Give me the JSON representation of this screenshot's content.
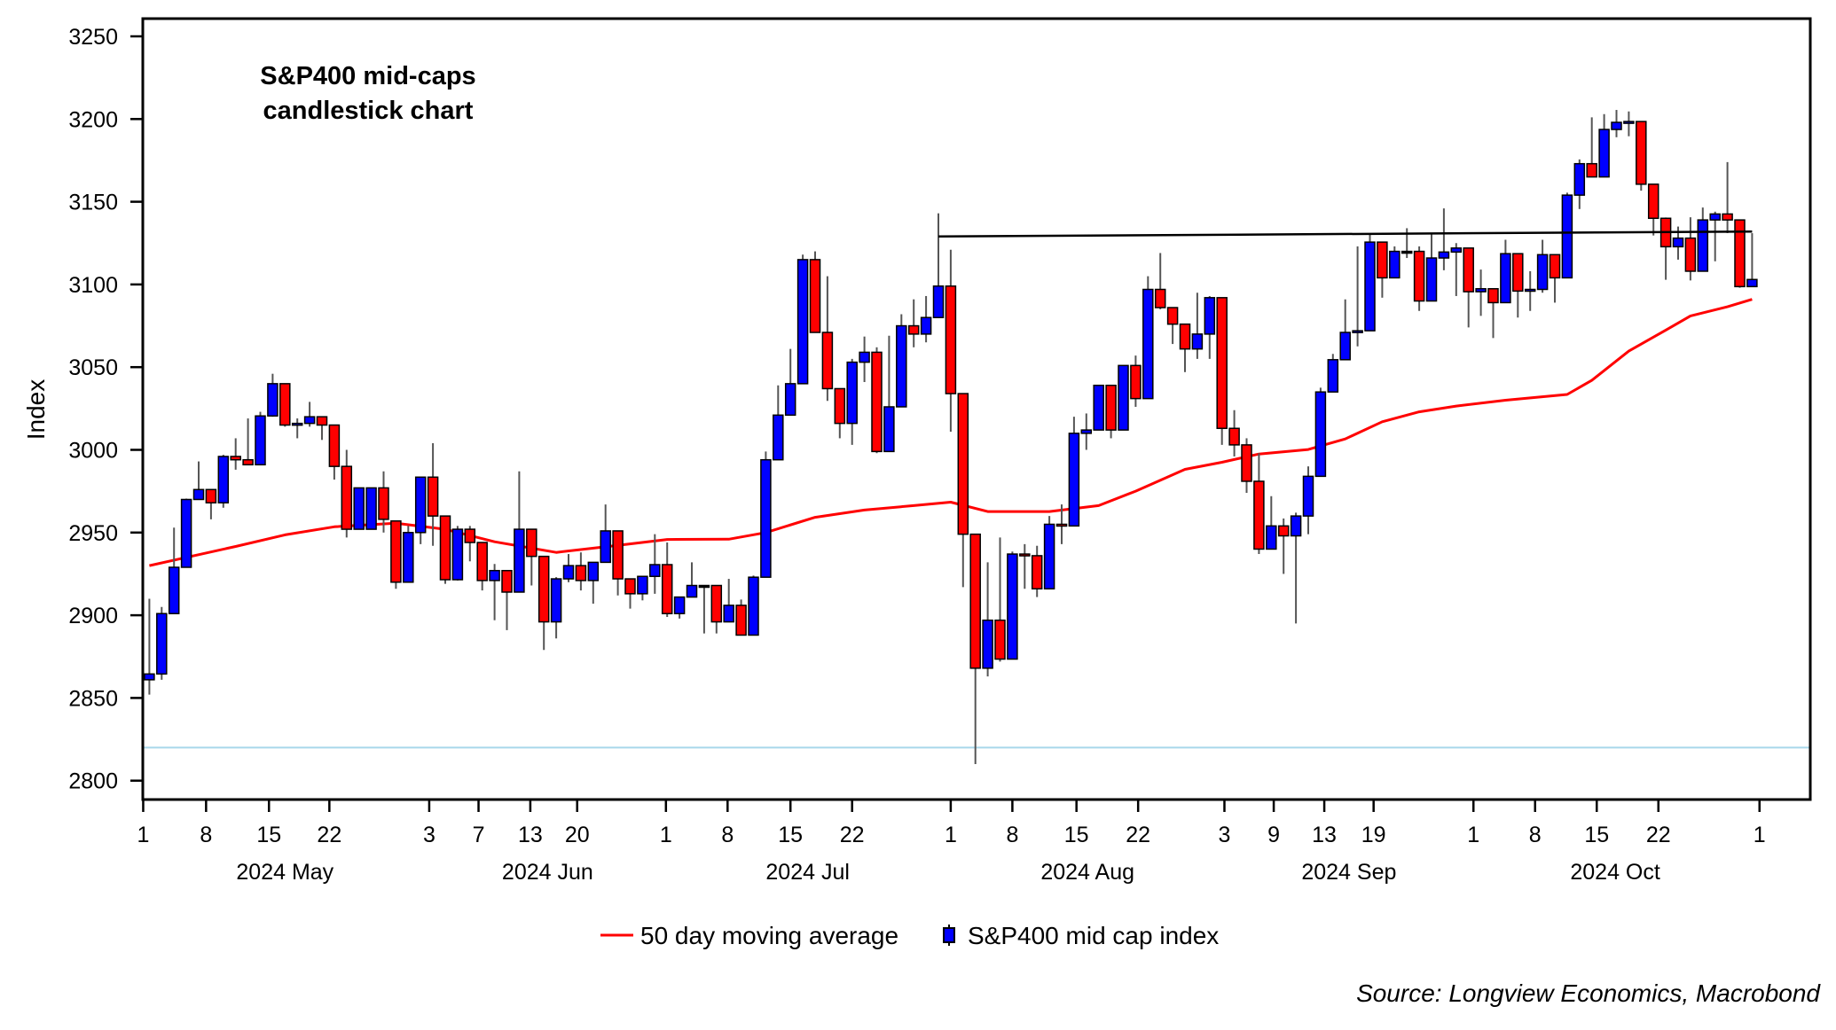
{
  "chart_data": {
    "type": "candlestick",
    "title_lines": [
      "S&P400 mid-caps",
      "candlestick chart"
    ],
    "ylabel": "Index",
    "ylim": [
      2800,
      3250
    ],
    "yticks": [
      2800,
      2850,
      2900,
      2950,
      3000,
      3050,
      3100,
      3150,
      3200,
      3250
    ],
    "xlim_index": [
      0.5,
      133
    ],
    "x_ticks": [
      {
        "label": "1",
        "idx": 0.5
      },
      {
        "label": "8",
        "idx": 5.6
      },
      {
        "label": "15",
        "idx": 10.7
      },
      {
        "label": "22",
        "idx": 15.6
      },
      {
        "label": "3",
        "idx": 23.7
      },
      {
        "label": "7",
        "idx": 27.7
      },
      {
        "label": "13",
        "idx": 31.9
      },
      {
        "label": "20",
        "idx": 35.7
      },
      {
        "label": "1",
        "idx": 42.9
      },
      {
        "label": "8",
        "idx": 47.9
      },
      {
        "label": "15",
        "idx": 53
      },
      {
        "label": "22",
        "idx": 58
      },
      {
        "label": "1",
        "idx": 66
      },
      {
        "label": "8",
        "idx": 71
      },
      {
        "label": "15",
        "idx": 76.2
      },
      {
        "label": "22",
        "idx": 81.2
      },
      {
        "label": "3",
        "idx": 88.2
      },
      {
        "label": "9",
        "idx": 92.2
      },
      {
        "label": "13",
        "idx": 96.3
      },
      {
        "label": "19",
        "idx": 100.3
      },
      {
        "label": "1",
        "idx": 108.4
      },
      {
        "label": "8",
        "idx": 113.4
      },
      {
        "label": "15",
        "idx": 118.4
      },
      {
        "label": "22",
        "idx": 123.4
      },
      {
        "label": "1",
        "idx": 131.6
      }
    ],
    "month_labels": [
      {
        "label": "2024 May",
        "idx": 12
      },
      {
        "label": "2024 Jun",
        "idx": 33.3
      },
      {
        "label": "2024 Jul",
        "idx": 54.4
      },
      {
        "label": "2024 Aug",
        "idx": 77.1
      },
      {
        "label": "2024 Sep",
        "idx": 98.3
      },
      {
        "label": "2024 Oct",
        "idx": 119.9
      }
    ],
    "candles_ohlc": [
      [
        2861,
        2910,
        2852,
        2864.5
      ],
      [
        2864.5,
        2905,
        2861,
        2901
      ],
      [
        2901,
        2953,
        2901,
        2929
      ],
      [
        2929,
        2970.5,
        2929,
        2970
      ],
      [
        2970,
        2993,
        2970,
        2976
      ],
      [
        2976,
        2976,
        2958,
        2968
      ],
      [
        2968,
        2997,
        2965,
        2996
      ],
      [
        2996,
        3007,
        2988,
        2994
      ],
      [
        2994,
        3019,
        2991,
        2991
      ],
      [
        2991,
        3023,
        2991,
        3020.5
      ],
      [
        3020.5,
        3046,
        3020,
        3040
      ],
      [
        3040,
        3040,
        3014,
        3015
      ],
      [
        3015,
        3019,
        3007,
        3016
      ],
      [
        3016,
        3029,
        3014,
        3020
      ],
      [
        3020,
        3020,
        3006,
        3015
      ],
      [
        3015,
        3015,
        2982,
        2990
      ],
      [
        2990,
        3000,
        2947,
        2952
      ],
      [
        2952,
        2977,
        2952,
        2977
      ],
      [
        2952,
        2977,
        2952,
        2977
      ],
      [
        2977,
        2987,
        2950,
        2958
      ],
      [
        2957,
        2957,
        2916,
        2920
      ],
      [
        2920,
        2954,
        2920,
        2950
      ],
      [
        2950,
        2983.5,
        2943,
        2983.5
      ],
      [
        2983.5,
        3004,
        2942,
        2960
      ],
      [
        2960,
        2960,
        2919,
        2921.5
      ],
      [
        2921.5,
        2954,
        2921,
        2952
      ],
      [
        2952,
        2954,
        2932.6,
        2944
      ],
      [
        2944,
        2944,
        2915,
        2921
      ],
      [
        2921,
        2931,
        2897,
        2927
      ],
      [
        2927,
        2927,
        2891,
        2914
      ],
      [
        2914,
        2987,
        2914,
        2952
      ],
      [
        2952,
        2952,
        2918,
        2935.6
      ],
      [
        2935.6,
        2935.6,
        2879,
        2896
      ],
      [
        2896,
        2923,
        2886,
        2922
      ],
      [
        2922,
        2937,
        2920,
        2930
      ],
      [
        2930,
        2938,
        2915,
        2921
      ],
      [
        2921,
        2932,
        2907,
        2932
      ],
      [
        2932,
        2967,
        2932,
        2951
      ],
      [
        2951,
        2951,
        2912,
        2922
      ],
      [
        2922,
        2922,
        2904,
        2913
      ],
      [
        2913,
        2923.5,
        2909,
        2923.5
      ],
      [
        2923.5,
        2949,
        2913,
        2930.6
      ],
      [
        2930.6,
        2944,
        2899,
        2901
      ],
      [
        2901,
        2911,
        2898,
        2911
      ],
      [
        2911,
        2932,
        2911,
        2918
      ],
      [
        2918,
        2918,
        2889,
        2918
      ],
      [
        2918,
        2918,
        2889,
        2896
      ],
      [
        2896,
        2922,
        2896,
        2906
      ],
      [
        2906,
        2909.5,
        2888,
        2888
      ],
      [
        2888,
        2924,
        2888,
        2923
      ],
      [
        2923,
        2999,
        2923,
        2994
      ],
      [
        2994,
        3039,
        2994,
        3021
      ],
      [
        3021,
        3061,
        3021,
        3040
      ],
      [
        3040,
        3118,
        3040,
        3115
      ],
      [
        3115,
        3120,
        3071,
        3071
      ],
      [
        3071,
        3105,
        3029.6,
        3037
      ],
      [
        3037,
        3037,
        3007,
        3016
      ],
      [
        3016,
        3055,
        3003,
        3053
      ],
      [
        3053,
        3068.5,
        3041,
        3059
      ],
      [
        3059,
        3062,
        2998,
        2999
      ],
      [
        2999,
        3069,
        2999,
        3026
      ],
      [
        3026,
        3082,
        3026,
        3075
      ],
      [
        3075,
        3091,
        3062,
        3070
      ],
      [
        3070,
        3093,
        3065,
        3080
      ],
      [
        3080,
        3143,
        3080,
        3099
      ],
      [
        3099,
        3121,
        3011,
        3034
      ],
      [
        3034,
        3034,
        2917,
        2949
      ],
      [
        2949,
        2949,
        2810,
        2868
      ],
      [
        2868,
        2932,
        2863,
        2897
      ],
      [
        2897,
        2947,
        2872,
        2873.5
      ],
      [
        2873.5,
        2938.5,
        2873.5,
        2937
      ],
      [
        2937,
        2943,
        2916,
        2936
      ],
      [
        2936,
        2942,
        2911,
        2916
      ],
      [
        2916,
        2960,
        2916,
        2955
      ],
      [
        2955,
        2967,
        2943,
        2954
      ],
      [
        2954,
        3020,
        2954,
        3010
      ],
      [
        3010,
        3022,
        3000,
        3012
      ],
      [
        3012,
        3039,
        3012,
        3039
      ],
      [
        3039,
        3039,
        3007,
        3012
      ],
      [
        3012,
        3051,
        3012,
        3051
      ],
      [
        3051,
        3057,
        3026,
        3031
      ],
      [
        3031,
        3105,
        3031,
        3097
      ],
      [
        3097,
        3119,
        3085,
        3086
      ],
      [
        3086,
        3086,
        3064,
        3076
      ],
      [
        3076,
        3076,
        3047,
        3061
      ],
      [
        3061,
        3095,
        3055,
        3070
      ],
      [
        3070,
        3093,
        3055,
        3092
      ],
      [
        3092,
        3092,
        3003,
        3013
      ],
      [
        3013,
        3024,
        2996,
        3003
      ],
      [
        3003,
        3007,
        2974,
        2981
      ],
      [
        2981,
        2998,
        2937,
        2940
      ],
      [
        2940,
        2972,
        2940,
        2954
      ],
      [
        2954,
        2958.5,
        2925,
        2948
      ],
      [
        2948,
        2962,
        2895,
        2960
      ],
      [
        2960,
        2990,
        2949,
        2984
      ],
      [
        2984,
        3037.6,
        2984,
        3035
      ],
      [
        3035,
        3058,
        3035,
        3054.5
      ],
      [
        3054.5,
        3091,
        3054.5,
        3071
      ],
      [
        3071,
        3123,
        3062.6,
        3072
      ],
      [
        3072,
        3131,
        3072,
        3125.6
      ],
      [
        3125.6,
        3125.6,
        3092,
        3104
      ],
      [
        3104,
        3123,
        3104,
        3120
      ],
      [
        3120,
        3134,
        3116,
        3120
      ],
      [
        3120,
        3123,
        3084,
        3090
      ],
      [
        3090,
        3131,
        3090,
        3116
      ],
      [
        3116,
        3146,
        3108.6,
        3119.6
      ],
      [
        3119.6,
        3125,
        3093,
        3122
      ],
      [
        3122,
        3122,
        3074,
        3095.6
      ],
      [
        3095.6,
        3109,
        3081,
        3097.4
      ],
      [
        3097.4,
        3097.4,
        3067.6,
        3089
      ],
      [
        3089,
        3127,
        3089,
        3118.6
      ],
      [
        3118.6,
        3118.6,
        3080,
        3096
      ],
      [
        3096,
        3108,
        3084,
        3097
      ],
      [
        3097,
        3127,
        3095,
        3118
      ],
      [
        3118,
        3118,
        3089,
        3104
      ],
      [
        3104,
        3155.5,
        3104,
        3154
      ],
      [
        3154,
        3175.6,
        3145.6,
        3173
      ],
      [
        3173,
        3201,
        3165,
        3165
      ],
      [
        3165,
        3203,
        3165,
        3193.7
      ],
      [
        3193.7,
        3205.5,
        3189,
        3198
      ],
      [
        3198,
        3204.6,
        3189.6,
        3198.5
      ],
      [
        3198.5,
        3198.5,
        3156.7,
        3160.6
      ],
      [
        3160.6,
        3160.6,
        3129.6,
        3140
      ],
      [
        3140,
        3140.5,
        3102.8,
        3122.8
      ],
      [
        3122.8,
        3135,
        3115,
        3128
      ],
      [
        3128,
        3140.6,
        3102.4,
        3108
      ],
      [
        3108,
        3146.5,
        3108,
        3139
      ],
      [
        3139,
        3144,
        3114,
        3142.6
      ],
      [
        3142.6,
        3174,
        3131,
        3139
      ],
      [
        3139,
        3139,
        3098,
        3098.7
      ],
      [
        3098.7,
        3131,
        3098.7,
        3103
      ]
    ],
    "moving_average_50d": [
      [
        1,
        2930
      ],
      [
        8,
        2941.6
      ],
      [
        12,
        2948.6
      ],
      [
        16,
        2953.5
      ],
      [
        21,
        2955.7
      ],
      [
        25,
        2952
      ],
      [
        29,
        2944.4
      ],
      [
        34,
        2938
      ],
      [
        39,
        2942.3
      ],
      [
        43,
        2945.8
      ],
      [
        48,
        2946
      ],
      [
        51,
        2950
      ],
      [
        55,
        2959.2
      ],
      [
        59,
        2963.6
      ],
      [
        63,
        2966.3
      ],
      [
        66,
        2968.4
      ],
      [
        69,
        2962.7
      ],
      [
        74,
        2962.7
      ],
      [
        78,
        2966.3
      ],
      [
        81,
        2975
      ],
      [
        85,
        2988.2
      ],
      [
        88,
        2992.5
      ],
      [
        91,
        2997.5
      ],
      [
        95,
        3000.2
      ],
      [
        98,
        3006.6
      ],
      [
        101,
        3017
      ],
      [
        104,
        3023
      ],
      [
        107,
        3026.5
      ],
      [
        111,
        3030
      ],
      [
        116,
        3033.5
      ],
      [
        118,
        3042
      ],
      [
        121,
        3059.7
      ],
      [
        124,
        3072.4
      ],
      [
        126,
        3081
      ],
      [
        129,
        3086.5
      ],
      [
        131,
        3091
      ]
    ],
    "resistance_line": {
      "from_idx": 65,
      "to_idx": 131,
      "values": [
        3129,
        3132
      ]
    },
    "reference_line_value": 2820,
    "legend": [
      {
        "label": "50 day moving average",
        "color": "#FF0000"
      },
      {
        "label": "S&P400 mid cap index",
        "color": "#0000FF"
      }
    ],
    "legend_position": "bottom-center",
    "up_color": "#0000FF",
    "down_color": "#FF0000",
    "reference_color": "#A8D8EA",
    "grid": false
  },
  "source": "Source: Longview Economics, Macrobond"
}
